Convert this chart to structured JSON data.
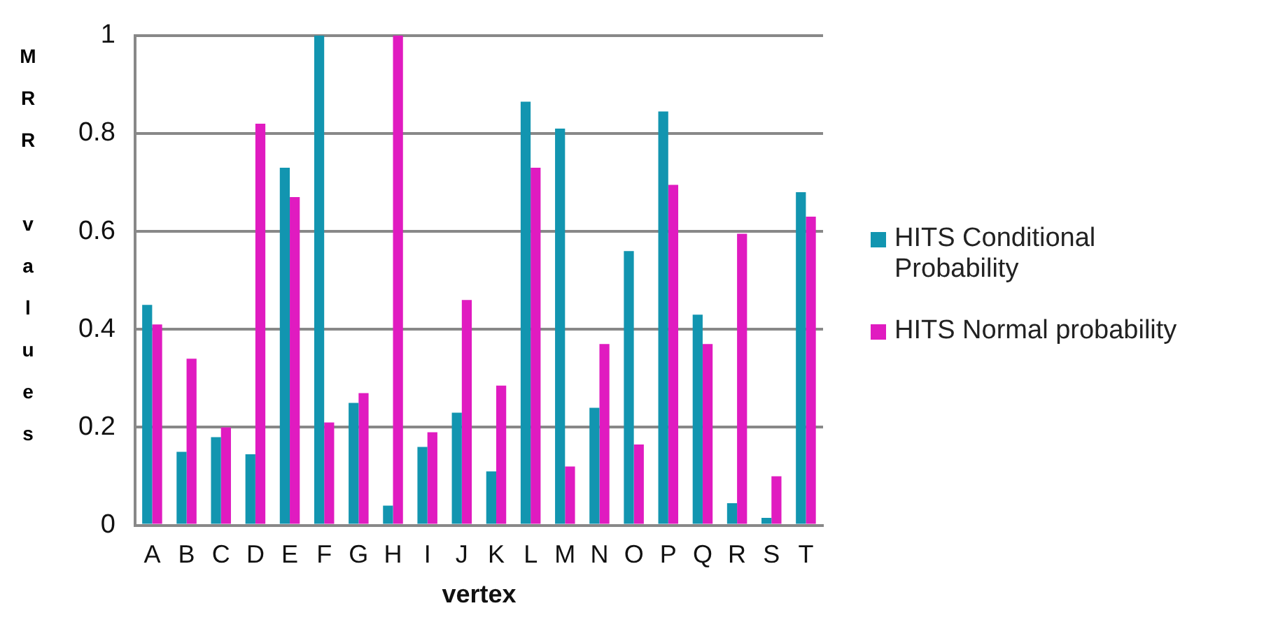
{
  "chart_data": {
    "type": "bar",
    "xlabel": "vertex",
    "ylabel": "MRR values",
    "categories": [
      "A",
      "B",
      "C",
      "D",
      "E",
      "F",
      "G",
      "H",
      "I",
      "J",
      "K",
      "L",
      "M",
      "N",
      "O",
      "P",
      "Q",
      "R",
      "S",
      "T"
    ],
    "series": [
      {
        "name": "HITS Conditional Probability",
        "color": "#1295b0",
        "values": [
          0.45,
          0.15,
          0.18,
          0.145,
          0.73,
          1,
          0.25,
          0.04,
          0.16,
          0.23,
          0.11,
          0.865,
          0.81,
          0.24,
          0.56,
          0.845,
          0.43,
          0.045,
          0.015,
          0.68
        ]
      },
      {
        "name": "HITS Normal probability",
        "color": "#e01bc0",
        "values": [
          0.41,
          0.34,
          0.2,
          0.82,
          0.67,
          0.21,
          0.27,
          1,
          0.19,
          0.46,
          0.285,
          0.73,
          0.12,
          0.37,
          0.165,
          0.695,
          0.37,
          0.595,
          0.1,
          0.63
        ]
      }
    ],
    "ylim": [
      0,
      1
    ],
    "yticks": [
      0,
      0.2,
      0.4,
      0.6,
      0.8,
      1
    ],
    "grid": "y",
    "legend": "right"
  }
}
